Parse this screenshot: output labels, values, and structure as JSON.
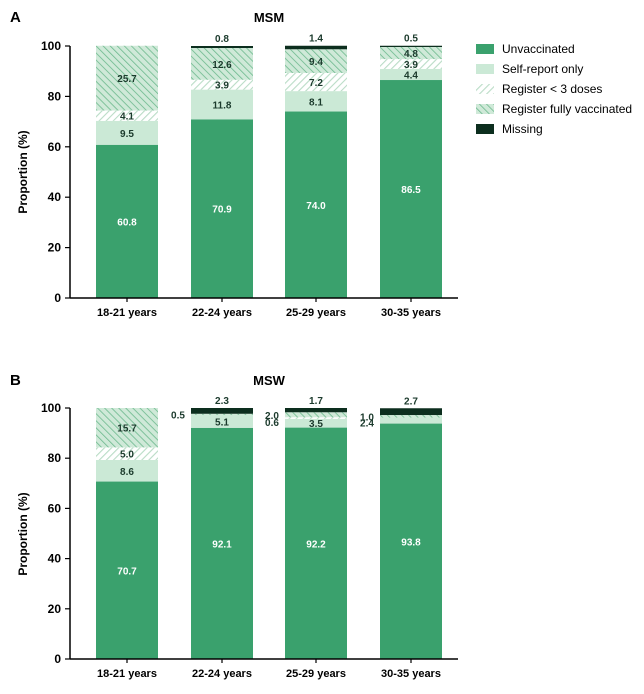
{
  "legend": {
    "items": [
      {
        "key": "unvaccinated",
        "label": "Unvaccinated"
      },
      {
        "key": "self_report",
        "label": "Self-report only"
      },
      {
        "key": "register_lt3",
        "label": "Register < 3 doses"
      },
      {
        "key": "register_full",
        "label": "Register fully vaccinated"
      },
      {
        "key": "missing",
        "label": "Missing"
      }
    ]
  },
  "colors": {
    "unvaccinated": "#3aa16d",
    "self_report": "#cbe9d6",
    "register_lt3_line": "#b9dcc6",
    "register_full_bg": "#cfe9d8",
    "register_full_line": "#6cb98d",
    "missing": "#0c2e1e",
    "label_dark": "#1b3a2c",
    "label_light": "#ffffff"
  },
  "chart_data": [
    {
      "panel": "A",
      "type": "bar",
      "stacked": true,
      "title": "MSM",
      "xlabel": "",
      "ylabel": "Proportion (%)",
      "ylim": [
        0,
        100
      ],
      "yticks": [
        "0",
        "20",
        "40",
        "60",
        "80",
        "100"
      ],
      "categories": [
        "18-21 years",
        "22-24 years",
        "25-29 years",
        "30-35 years"
      ],
      "series": [
        {
          "key": "unvaccinated",
          "name": "Unvaccinated",
          "values": [
            60.8,
            70.9,
            74.0,
            86.5
          ],
          "labels": [
            "60.8",
            "70.9",
            "74.0",
            "86.5"
          ]
        },
        {
          "key": "self_report",
          "name": "Self-report only",
          "values": [
            9.5,
            11.8,
            8.1,
            4.4
          ],
          "labels": [
            "9.5",
            "11.8",
            "8.1",
            "4.4"
          ]
        },
        {
          "key": "register_lt3",
          "name": "Register < 3 doses",
          "values": [
            4.1,
            3.9,
            7.2,
            3.9
          ],
          "labels": [
            "4.1",
            "3.9",
            "7.2",
            "3.9"
          ]
        },
        {
          "key": "register_full",
          "name": "Register fully vaccinated",
          "values": [
            25.7,
            12.6,
            9.4,
            4.8
          ],
          "labels": [
            "25.7",
            "12.6",
            "9.4",
            "4.8"
          ]
        },
        {
          "key": "missing",
          "name": "Missing",
          "values": [
            0,
            0.8,
            1.4,
            0.5
          ],
          "labels": [
            "",
            "0.8",
            "1.4",
            "0.5"
          ]
        }
      ]
    },
    {
      "panel": "B",
      "type": "bar",
      "stacked": true,
      "title": "MSW",
      "xlabel": "",
      "ylabel": "Proportion (%)",
      "ylim": [
        0,
        100
      ],
      "yticks": [
        "0",
        "20",
        "40",
        "60",
        "80",
        "100"
      ],
      "categories": [
        "18-21 years",
        "22-24 years",
        "25-29 years",
        "30-35 years"
      ],
      "series": [
        {
          "key": "unvaccinated",
          "name": "Unvaccinated",
          "values": [
            70.7,
            92.1,
            92.2,
            93.8
          ],
          "labels": [
            "70.7",
            "92.1",
            "92.2",
            "93.8"
          ]
        },
        {
          "key": "self_report",
          "name": "Self-report only",
          "values": [
            8.6,
            5.1,
            3.5,
            2.4
          ],
          "labels": [
            "8.6",
            "5.1",
            "3.5",
            "2.4"
          ]
        },
        {
          "key": "register_lt3",
          "name": "Register < 3 doses",
          "values": [
            5.0,
            0,
            0.6,
            0
          ],
          "labels": [
            "5.0",
            "",
            "0.6",
            ""
          ]
        },
        {
          "key": "register_full",
          "name": "Register fully vaccinated",
          "values": [
            15.7,
            0.5,
            2.0,
            1.0
          ],
          "labels": [
            "15.7",
            "0.5",
            "2.0",
            "1.0"
          ]
        },
        {
          "key": "missing",
          "name": "Missing",
          "values": [
            0,
            2.3,
            1.7,
            2.7
          ],
          "labels": [
            "",
            "2.3",
            "1.7",
            "2.7"
          ]
        }
      ]
    }
  ]
}
